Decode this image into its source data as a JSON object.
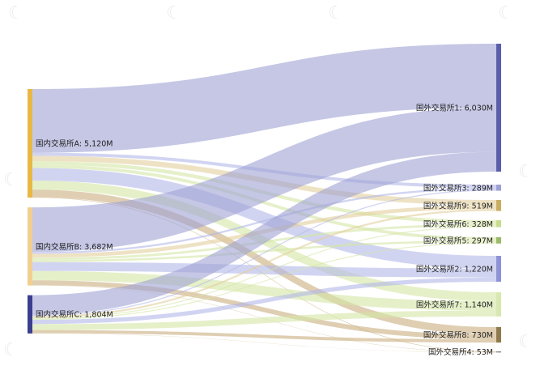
{
  "watermark_icon": "logo-mark-icon",
  "colors": {
    "src_A": "#e9b744",
    "src_B": "#f1cf8f",
    "src_C": "#3a3f8f",
    "flow_blue": "#9ea1d4",
    "flow_lightblue": "#b3b8e8",
    "flow_green": "#d4e6a5",
    "flow_tan": "#c9ae7e",
    "flow_sand": "#e3cf9d"
  },
  "chart_data": {
    "type": "sankey",
    "title": "",
    "sources": [
      {
        "id": "A",
        "label": "国内交易所A: 5,120M",
        "value": 5120,
        "color": "#e9b744"
      },
      {
        "id": "B",
        "label": "国内交易所B: 3,682M",
        "value": 3682,
        "color": "#f1cf8f"
      },
      {
        "id": "C",
        "label": "国内交易所C: 1,804M",
        "value": 1804,
        "color": "#3a3f8f"
      }
    ],
    "targets": [
      {
        "id": "T1",
        "label": "国外交易所1: 6,030M",
        "value": 6030,
        "color": "#5a5eaa"
      },
      {
        "id": "T3",
        "label": "国外交易所3: 289M",
        "value": 289,
        "color": "#9ea1d4"
      },
      {
        "id": "T9",
        "label": "国外交易所9: 519M",
        "value": 519,
        "color": "#c9ae62"
      },
      {
        "id": "T6",
        "label": "国外交易所6: 328M",
        "value": 328,
        "color": "#c7dc8e"
      },
      {
        "id": "T5",
        "label": "国外交易所5: 297M",
        "value": 297,
        "color": "#9cb86a"
      },
      {
        "id": "T2",
        "label": "国外交易所2: 1,220M",
        "value": 1220,
        "color": "#8e92d6"
      },
      {
        "id": "T7",
        "label": "国外交易所7: 1,140M",
        "value": 1140,
        "color": "#d8e8b0"
      },
      {
        "id": "T8",
        "label": "国外交易所8: 730M",
        "value": 730,
        "color": "#8f7a4e"
      },
      {
        "id": "T4",
        "label": "国外交易所4: 53M",
        "value": 53,
        "color": "#888888"
      }
    ],
    "links": [
      {
        "source": "A",
        "target": "T1",
        "value": 3000,
        "color": "#9ea1d4"
      },
      {
        "source": "A",
        "target": "T3",
        "value": 150,
        "color": "#b3b8e8"
      },
      {
        "source": "A",
        "target": "T9",
        "value": 250,
        "color": "#e3cf9d"
      },
      {
        "source": "A",
        "target": "T6",
        "value": 170,
        "color": "#d4e6a5"
      },
      {
        "source": "A",
        "target": "T5",
        "value": 150,
        "color": "#d4e6a5"
      },
      {
        "source": "A",
        "target": "T2",
        "value": 600,
        "color": "#b3b8e8"
      },
      {
        "source": "A",
        "target": "T7",
        "value": 420,
        "color": "#d4e6a5"
      },
      {
        "source": "A",
        "target": "T8",
        "value": 350,
        "color": "#c9ae7e"
      },
      {
        "source": "A",
        "target": "T4",
        "value": 30,
        "color": "#c9ae7e"
      },
      {
        "source": "B",
        "target": "T1",
        "value": 2100,
        "color": "#9ea1d4"
      },
      {
        "source": "B",
        "target": "T3",
        "value": 90,
        "color": "#b3b8e8"
      },
      {
        "source": "B",
        "target": "T9",
        "value": 180,
        "color": "#e3cf9d"
      },
      {
        "source": "B",
        "target": "T6",
        "value": 110,
        "color": "#d4e6a5"
      },
      {
        "source": "B",
        "target": "T5",
        "value": 100,
        "color": "#d4e6a5"
      },
      {
        "source": "B",
        "target": "T2",
        "value": 420,
        "color": "#b3b8e8"
      },
      {
        "source": "B",
        "target": "T7",
        "value": 440,
        "color": "#d4e6a5"
      },
      {
        "source": "B",
        "target": "T8",
        "value": 228,
        "color": "#c9ae7e"
      },
      {
        "source": "B",
        "target": "T4",
        "value": 14,
        "color": "#c9ae7e"
      },
      {
        "source": "C",
        "target": "T1",
        "value": 930,
        "color": "#9ea1d4"
      },
      {
        "source": "C",
        "target": "T3",
        "value": 49,
        "color": "#b3b8e8"
      },
      {
        "source": "C",
        "target": "T9",
        "value": 89,
        "color": "#e3cf9d"
      },
      {
        "source": "C",
        "target": "T6",
        "value": 48,
        "color": "#d4e6a5"
      },
      {
        "source": "C",
        "target": "T5",
        "value": 47,
        "color": "#d4e6a5"
      },
      {
        "source": "C",
        "target": "T2",
        "value": 200,
        "color": "#b3b8e8"
      },
      {
        "source": "C",
        "target": "T7",
        "value": 280,
        "color": "#d4e6a5"
      },
      {
        "source": "C",
        "target": "T8",
        "value": 152,
        "color": "#c9ae7e"
      },
      {
        "source": "C",
        "target": "T4",
        "value": 9,
        "color": "#c9ae7e"
      }
    ]
  }
}
